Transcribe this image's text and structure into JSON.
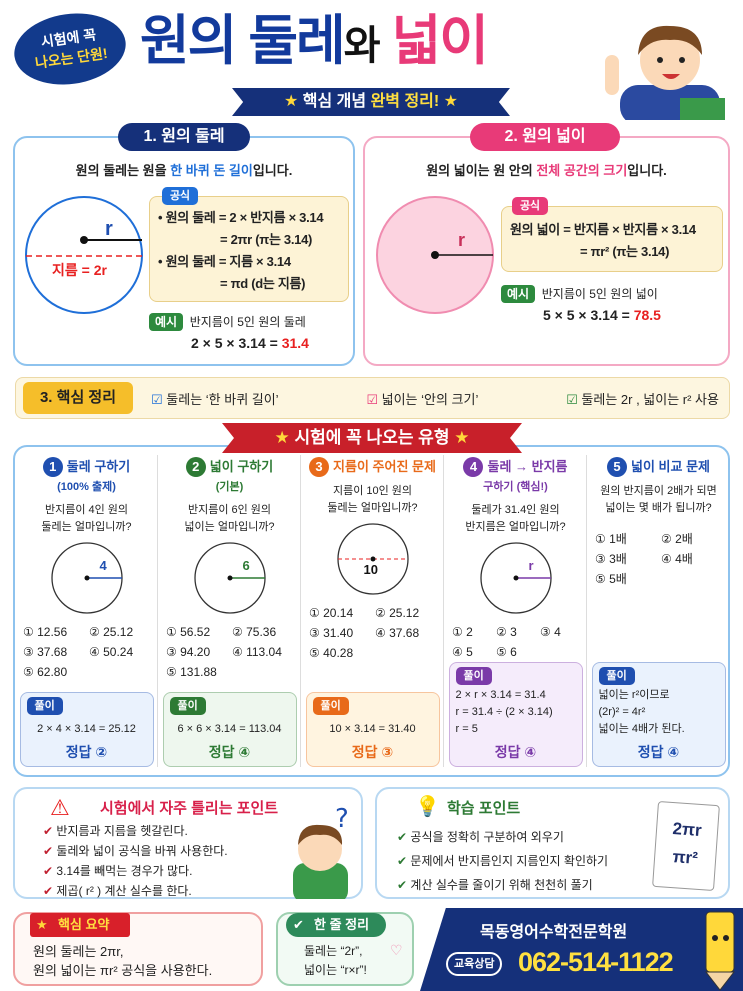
{
  "header": {
    "bubble_line1": "시험에 꼭",
    "bubble_line2": "나오는 단원!",
    "title_part1": "원의 둘레",
    "title_part2": "와",
    "title_part3": "넓이",
    "ribbon_part1": "핵심 개념",
    "ribbon_part2": "완벽 정리!"
  },
  "section1": {
    "label": "1. 원의 둘레",
    "intro_before": "원의 둘레는 원을 ",
    "intro_highlight": "한 바퀴 돈 길이",
    "intro_after": "입니다.",
    "radius_label": "r",
    "diameter_label": "지름 = 2r",
    "formula_tag": "공식",
    "formula_lines": [
      "• 원의 둘레 = 2 × 반지름 × 3.14",
      "= 2πr (π는 3.14)",
      "• 원의 둘레 = 지름 × 3.14",
      "= πd  (d는 지름)"
    ],
    "example_tag": "예시",
    "example_q": "반지름이 5인 원의 둘레",
    "example_calc": "2 × 5 × 3.14 = ",
    "example_answer": "31.4"
  },
  "section2": {
    "label": "2. 원의 넓이",
    "intro_before": "원의 넓이는 원 안의 ",
    "intro_highlight": "전체 공간의 크기",
    "intro_after": "입니다.",
    "radius_label": "r",
    "formula_tag": "공식",
    "formula_line1": "원의 넓이 = 반지름 × 반지름 × 3.14",
    "formula_line2": "= πr²  (π는 3.14)",
    "example_tag": "예시",
    "example_q": "반지름이 5인 원의 넓이",
    "example_calc": "5 × 5 × 3.14 = ",
    "example_answer": "78.5"
  },
  "section3": {
    "label": "3. 핵심 정리",
    "items": [
      "둘레는 ‘한 바퀴 길이’",
      "넓이는 ‘안의 크기’",
      "둘레는 2r , 넓이는 r² 사용"
    ]
  },
  "problems": {
    "ribbon": "시험에 꼭 나오는 유형",
    "sol_tag": "풀이",
    "answer_label": "정답",
    "items": [
      {
        "num": "1",
        "title": "둘레 구하기",
        "sub": "(100% 출제)",
        "q1": "반지름이 4인 원의",
        "q2": "둘레는 얼마입니까?",
        "fig": "4",
        "choices": [
          "① 12.56",
          "② 25.12",
          "③ 37.68",
          "④ 50.24",
          "⑤ 62.80"
        ],
        "solution": [
          "2 × 4 × 3.14 = 25.12"
        ],
        "answer": "②",
        "color": "#1f4fb0"
      },
      {
        "num": "2",
        "title": "넓이 구하기",
        "sub": "(기본)",
        "q1": "반지름이 6인 원의",
        "q2": "넓이는 얼마입니까?",
        "fig": "6",
        "choices": [
          "① 56.52",
          "② 75.36",
          "③ 94.20",
          "④ 113.04",
          "⑤ 131.88"
        ],
        "solution": [
          "6 × 6 × 3.14 = 113.04"
        ],
        "answer": "④",
        "color": "#2d7a34"
      },
      {
        "num": "3",
        "title": "지름이 주어진 문제",
        "sub": "",
        "q1": "지름이 10인 원의",
        "q2": "둘레는 얼마입니까?",
        "fig": "10",
        "choices": [
          "① 20.14",
          "② 25.12",
          "③ 31.40",
          "④ 37.68",
          "⑤ 40.28"
        ],
        "solution": [
          "10 × 3.14 = 31.40"
        ],
        "answer": "③",
        "color": "#e86a1a"
      },
      {
        "num": "4",
        "title": "둘레 → 반지름",
        "sub": "구하기 (핵심!)",
        "q1": "둘레가 31.4인 원의",
        "q2": "반지름은 얼마입니까?",
        "fig": "r",
        "choices": [
          "① 2",
          "② 3",
          "③ 4",
          "④ 5",
          "⑤ 6"
        ],
        "solution": [
          "2 × r × 3.14 = 31.4",
          "r = 31.4 ÷ (2 × 3.14)",
          "r = 5"
        ],
        "answer": "④",
        "color": "#7a3aa8"
      },
      {
        "num": "5",
        "title": "넓이 비교 문제",
        "sub": "",
        "q1": "원의 반지름이 2배가 되면",
        "q2": "넓이는 몇 배가 됩니까?",
        "fig": "",
        "choices": [
          "① 1배",
          "② 2배",
          "③ 3배",
          "④ 4배",
          "⑤ 5배"
        ],
        "solution": [
          "넓이는 r²이므로",
          "(2r)² = 4r²",
          "넓이는 4배가 된다."
        ],
        "answer": "④",
        "color": "#1f4fb0"
      }
    ]
  },
  "mistakes": {
    "title": "시험에서 자주 틀리는 포인트",
    "items": [
      "반지름과 지름을 헷갈린다.",
      "둘레와 넓이 공식을 바꿔 사용한다.",
      "3.14를 빼먹는 경우가 많다.",
      "제곱( r² ) 계산 실수를 한다."
    ]
  },
  "study": {
    "title": "학습 포인트",
    "items": [
      "공식을 정확히 구분하여 외우기",
      "문제에서 반지름인지 지름인지 확인하기",
      "계산 실수를 줄이기 위해 천천히 풀기"
    ],
    "note1": "2πr",
    "note2": "πr²"
  },
  "summary": {
    "label": "핵심 요약",
    "line1": "원의 둘레는 2πr,",
    "line2": "원의 넓이는 πr² 공식을 사용한다."
  },
  "oneline": {
    "label": "한 줄 정리",
    "line1": "둘레는 “2r”,",
    "line2": "넓이는 “r×r”!"
  },
  "academy": {
    "name": "목동영어수학전문학원",
    "consult": "교육상담",
    "phone": "062-514-1122"
  },
  "colors": {
    "navy": "#15307a",
    "pink": "#e83a78",
    "red": "#e8202a",
    "yellow": "#ffe040"
  }
}
